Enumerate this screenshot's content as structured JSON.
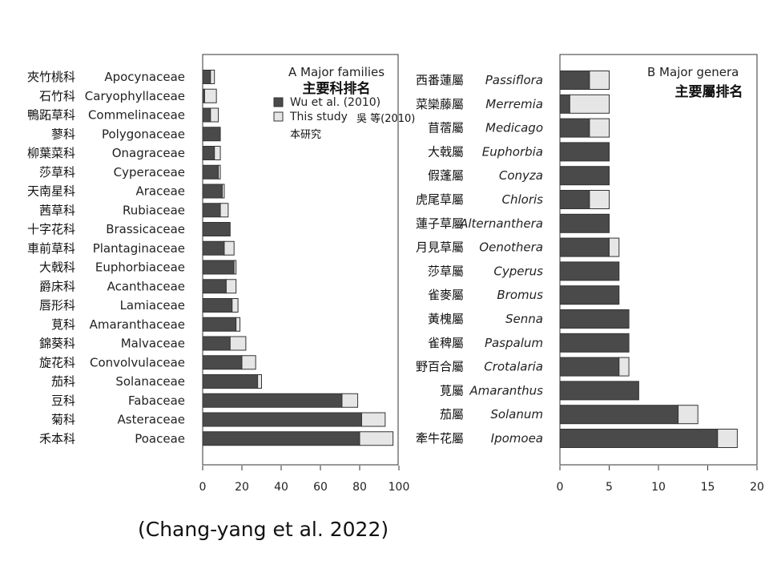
{
  "chart_data": [
    {
      "type": "bar",
      "orientation": "horizontal",
      "stacked": true,
      "title": "A  Major families",
      "subtitle_zh": "主要科排名",
      "categories": [
        "Apocynaceae",
        "Caryophyllaceae",
        "Commelinaceae",
        "Polygonaceae",
        "Onagraceae",
        "Cyperaceae",
        "Araceae",
        "Rubiaceae",
        "Brassicaceae",
        "Plantaginaceae",
        "Euphorbiaceae",
        "Acanthaceae",
        "Lamiaceae",
        "Amaranthaceae",
        "Malvaceae",
        "Convolvulaceae",
        "Solanaceae",
        "Fabaceae",
        "Asteraceae",
        "Poaceae"
      ],
      "categories_zh": [
        "夾竹桃科",
        "石竹科",
        "鴨跖草科",
        "蓼科",
        "柳葉菜科",
        "莎草科",
        "天南星科",
        "茜草科",
        "十字花科",
        "車前草科",
        "大戟科",
        "爵床科",
        "唇形科",
        "莧科",
        "錦葵科",
        "旋花科",
        "茄科",
        "豆科",
        "菊科",
        "禾本科"
      ],
      "series": [
        {
          "name": "Wu et al. (2010)",
          "name_zh": "吳 等(2010)",
          "color": "#4a4a4a",
          "values": [
            4,
            1,
            4,
            9,
            6,
            8,
            10,
            9,
            14,
            11,
            16,
            12,
            15,
            17,
            14,
            20,
            28,
            71,
            81,
            80
          ]
        },
        {
          "name": "This study",
          "name_zh": "本研究",
          "color": "#e6e6e6",
          "values": [
            2,
            6,
            4,
            0,
            3,
            1,
            1,
            4,
            0,
            5,
            1,
            5,
            3,
            2,
            8,
            7,
            2,
            8,
            12,
            17
          ]
        }
      ],
      "xlim": [
        0,
        100
      ],
      "xticks": [
        0,
        20,
        40,
        60,
        80,
        100
      ],
      "legend_position": "top-right"
    },
    {
      "type": "bar",
      "orientation": "horizontal",
      "stacked": true,
      "title": "B  Major genera",
      "subtitle_zh": "主要屬排名",
      "categories": [
        "Passiflora",
        "Merremia",
        "Medicago",
        "Euphorbia",
        "Conyza",
        "Chloris",
        "Alternanthera",
        "Oenothera",
        "Cyperus",
        "Bromus",
        "Senna",
        "Paspalum",
        "Crotalaria",
        "Amaranthus",
        "Solanum",
        "Ipomoea"
      ],
      "categories_zh": [
        "西番蓮屬",
        "菜欒藤屬",
        "苜蓿屬",
        "大戟屬",
        "假蓬屬",
        "虎尾草屬",
        "蓮子草屬",
        "月見草屬",
        "莎草屬",
        "雀麥屬",
        "黃槐屬",
        "雀稗屬",
        "野百合屬",
        "莧屬",
        "茄屬",
        "牽牛花屬"
      ],
      "series": [
        {
          "name": "Wu et al. (2010)",
          "color": "#4a4a4a",
          "values": [
            3,
            1,
            3,
            5,
            5,
            3,
            5,
            5,
            6,
            6,
            7,
            7,
            6,
            8,
            12,
            16
          ]
        },
        {
          "name": "This study",
          "color": "#e6e6e6",
          "values": [
            2,
            4,
            2,
            0,
            0,
            2,
            0,
            1,
            0,
            0,
            0,
            0,
            1,
            0,
            2,
            2
          ]
        }
      ],
      "xlim": [
        0,
        20
      ],
      "xticks": [
        0,
        5,
        10,
        15,
        20
      ]
    }
  ],
  "citation": "(Chang-yang et al. 2022)"
}
